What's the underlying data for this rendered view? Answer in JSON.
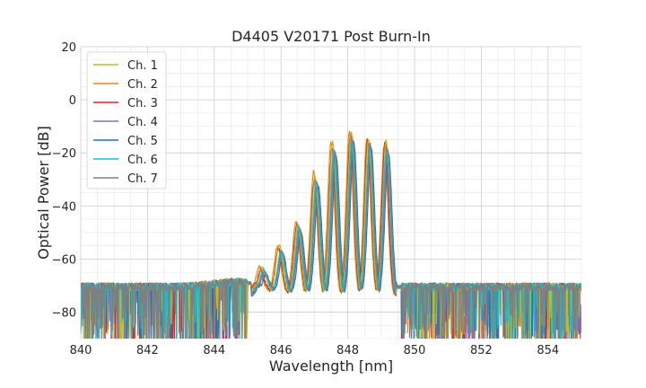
{
  "chart_data": {
    "type": "line",
    "title": "D4405 V20171 Post Burn-In",
    "xlabel": "Wavelength [nm]",
    "ylabel": "Optical Power [dB]",
    "xlim": [
      840,
      855
    ],
    "ylim": [
      -90,
      20
    ],
    "x_ticks": [
      "840",
      "842",
      "844",
      "846",
      "848",
      "850",
      "852",
      "854"
    ],
    "y_ticks": [
      "20",
      "0",
      "−20",
      "−40",
      "−60",
      "−80"
    ],
    "grid": true,
    "legend_position": "top-left",
    "series": [
      {
        "name": "Ch. 1",
        "color": "#bcbd22",
        "peaks": [
          [
            845.45,
            -63
          ],
          [
            845.95,
            -55
          ],
          [
            846.5,
            -47
          ],
          [
            847.02,
            -29
          ],
          [
            847.55,
            -16
          ],
          [
            848.1,
            -12
          ],
          [
            848.62,
            -15
          ],
          [
            849.15,
            -15
          ]
        ]
      },
      {
        "name": "Ch. 2",
        "color": "#ff7f0e",
        "peaks": [
          [
            845.35,
            -63
          ],
          [
            845.9,
            -55
          ],
          [
            846.45,
            -46
          ],
          [
            846.98,
            -27
          ],
          [
            847.5,
            -16
          ],
          [
            848.05,
            -12
          ],
          [
            848.58,
            -14
          ],
          [
            849.1,
            -17
          ]
        ]
      },
      {
        "name": "Ch. 3",
        "color": "#d62728",
        "peaks": [
          [
            845.4,
            -64
          ],
          [
            845.93,
            -56
          ],
          [
            846.48,
            -47
          ],
          [
            847.0,
            -30
          ],
          [
            847.53,
            -18
          ],
          [
            848.08,
            -13
          ],
          [
            848.6,
            -15
          ],
          [
            849.12,
            -16
          ]
        ]
      },
      {
        "name": "Ch. 4",
        "color": "#9467bd",
        "peaks": [
          [
            845.5,
            -65
          ],
          [
            846.0,
            -57
          ],
          [
            846.55,
            -48
          ],
          [
            847.08,
            -31
          ],
          [
            847.6,
            -19
          ],
          [
            848.13,
            -14
          ],
          [
            848.66,
            -16
          ],
          [
            849.18,
            -18
          ]
        ]
      },
      {
        "name": "Ch. 5",
        "color": "#1f77b4",
        "peaks": [
          [
            845.55,
            -66
          ],
          [
            846.06,
            -58
          ],
          [
            846.6,
            -50
          ],
          [
            847.12,
            -33
          ],
          [
            847.65,
            -21
          ],
          [
            848.18,
            -16
          ],
          [
            848.7,
            -18
          ],
          [
            849.22,
            -20
          ]
        ]
      },
      {
        "name": "Ch. 6",
        "color": "#17becf",
        "peaks": [
          [
            845.48,
            -64
          ],
          [
            846.0,
            -57
          ],
          [
            846.53,
            -48
          ],
          [
            847.05,
            -31
          ],
          [
            847.58,
            -19
          ],
          [
            848.12,
            -15
          ],
          [
            848.65,
            -17
          ],
          [
            849.16,
            -19
          ]
        ]
      },
      {
        "name": "Ch. 7",
        "color": "#7f7f7f",
        "peaks": [
          [
            845.52,
            -65
          ],
          [
            846.03,
            -57
          ],
          [
            846.57,
            -49
          ],
          [
            847.09,
            -32
          ],
          [
            847.62,
            -20
          ],
          [
            848.15,
            -15
          ],
          [
            848.67,
            -17
          ],
          [
            849.2,
            -19
          ]
        ]
      }
    ]
  }
}
